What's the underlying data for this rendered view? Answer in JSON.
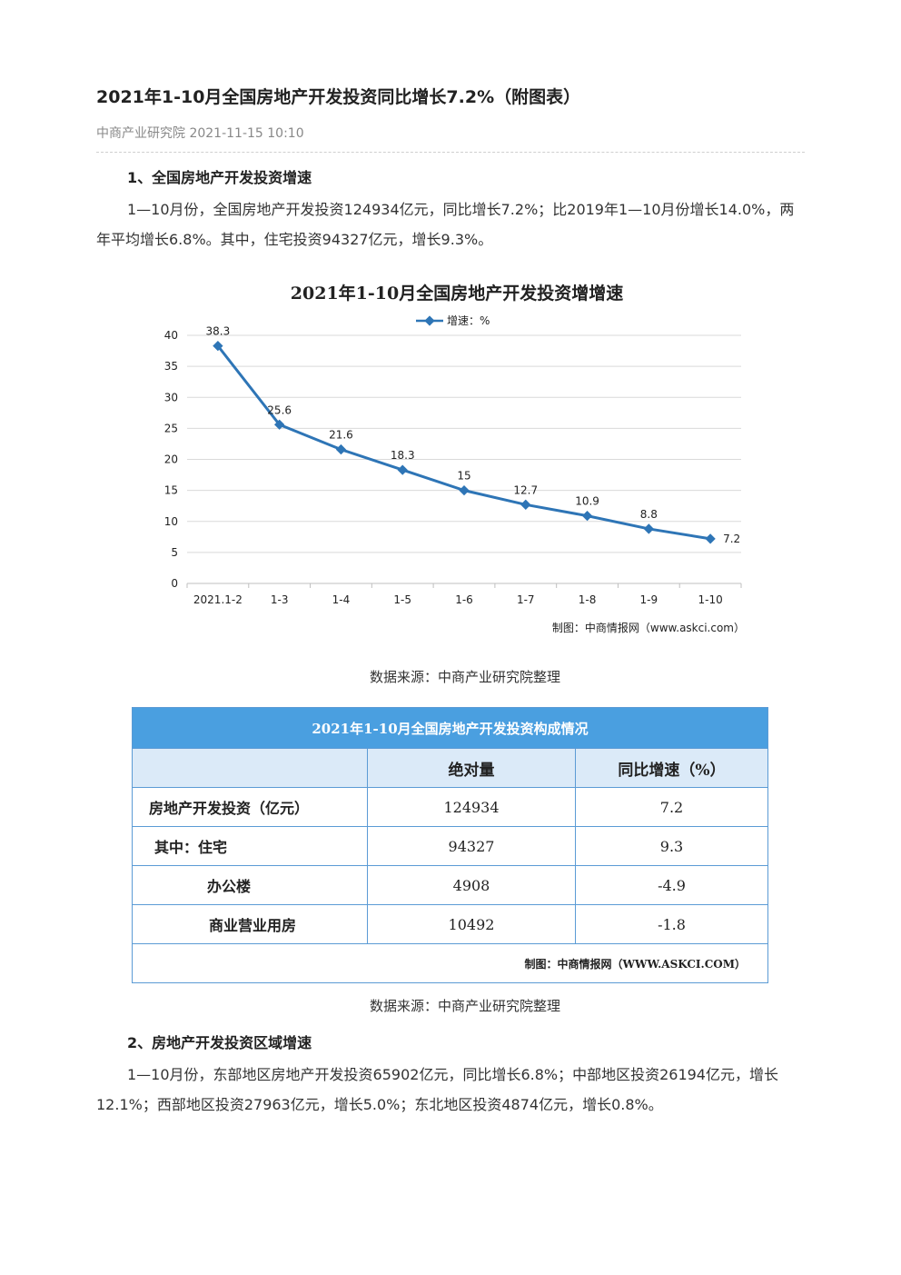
{
  "article": {
    "title": "2021年1-10月全国房地产开发投资同比增长7.2%（附图表）",
    "meta": "中商产业研究院 2021-11-15 10:10"
  },
  "section1": {
    "heading": "1、全国房地产开发投资增速",
    "paragraph": "1—10月份，全国房地产开发投资124934亿元，同比增长7.2%；比2019年1—10月份增长14.0%，两年平均增长6.8%。其中，住宅投资94327亿元，增长9.3%。"
  },
  "chart_caption": "数据来源：中商产业研究院整理",
  "chart_data": {
    "type": "line",
    "title": "2021年1-10月全国房地产开发投资增增速",
    "categories": [
      "2021.1-2",
      "1-3",
      "1-4",
      "1-5",
      "1-6",
      "1-7",
      "1-8",
      "1-9",
      "1-10"
    ],
    "series": [
      {
        "name": "增速：%",
        "values": [
          38.3,
          25.6,
          21.6,
          18.3,
          15,
          12.7,
          10.9,
          8.8,
          7.2
        ],
        "color": "#2e75b6"
      }
    ],
    "ylim": [
      0,
      40
    ],
    "yticks": [
      0,
      5,
      10,
      15,
      20,
      25,
      30,
      35,
      40
    ],
    "grid": true,
    "legend": "top",
    "credit": "制图：中商情报网（www.askci.com）"
  },
  "table": {
    "title": "2021年1-10月全国房地产开发投资构成情况",
    "columns": [
      "",
      "绝对量",
      "同比增速（%）"
    ],
    "rows": [
      {
        "label": "房地产开发投资（亿元）",
        "value": "124934",
        "growth": "7.2"
      },
      {
        "label": "其中：住宅",
        "value": "94327",
        "growth": "9.3"
      },
      {
        "label": "办公楼",
        "value": "4908",
        "growth": "-4.9"
      },
      {
        "label": "商业营业用房",
        "value": "10492",
        "growth": "-1.8"
      }
    ],
    "credit": "制图：中商情报网（WWW.ASKCI.COM）"
  },
  "table_caption": "数据来源：中商产业研究院整理",
  "section2": {
    "heading": "2、房地产开发投资区域增速",
    "paragraph": "1—10月份，东部地区房地产开发投资65902亿元，同比增长6.8%；中部地区投资26194亿元，增长12.1%；西部地区投资27963亿元，增长5.0%；东北地区投资4874亿元，增长0.8%。"
  },
  "colors": {
    "accent": "#2e75b6",
    "table_header": "#4a9fe0",
    "table_subheader": "#dbeaf8"
  }
}
